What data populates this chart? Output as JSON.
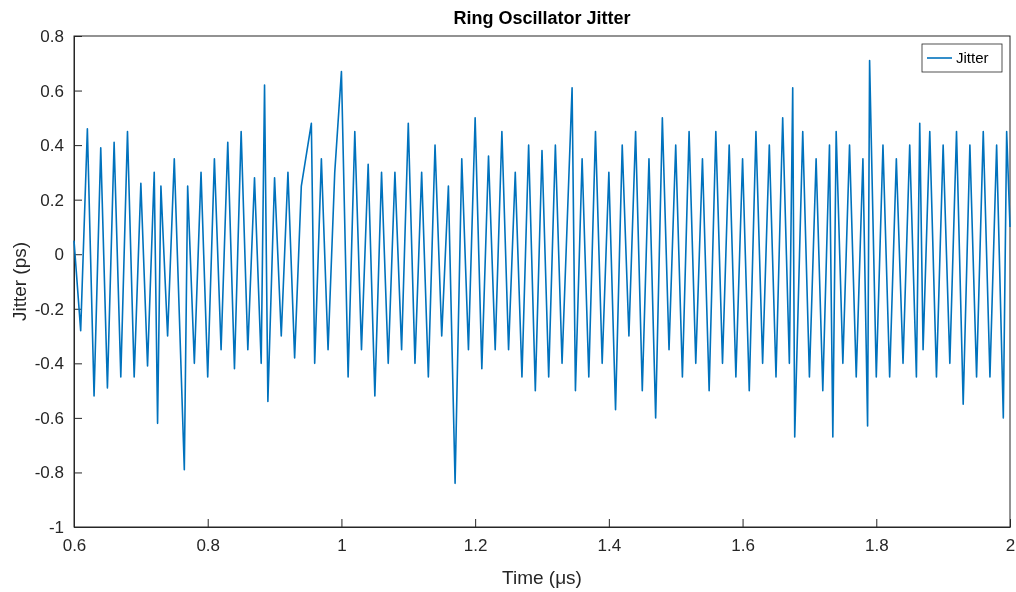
{
  "chart_data": {
    "type": "line",
    "title": "Ring Oscillator Jitter",
    "xlabel": "Time (μs)",
    "ylabel": "Jitter (ps)",
    "xlim": [
      0.6,
      2
    ],
    "ylim": [
      -1,
      0.8
    ],
    "xticks": [
      0.6,
      0.8,
      1,
      1.2,
      1.4,
      1.6,
      1.8,
      2
    ],
    "yticks": [
      -1,
      -0.8,
      -0.6,
      -0.4,
      -0.2,
      0,
      0.2,
      0.4,
      0.6,
      0.8
    ],
    "legend": "top right",
    "grid": false,
    "line_style": "solid",
    "marker": "none",
    "x": [
      0.6,
      0.61,
      0.62,
      0.63,
      0.64,
      0.65,
      0.66,
      0.67,
      0.68,
      0.69,
      0.7,
      0.71,
      0.72,
      0.725,
      0.73,
      0.74,
      0.75,
      0.765,
      0.77,
      0.78,
      0.79,
      0.8,
      0.81,
      0.82,
      0.83,
      0.84,
      0.85,
      0.86,
      0.87,
      0.88,
      0.885,
      0.89,
      0.9,
      0.91,
      0.92,
      0.93,
      0.94,
      0.955,
      0.96,
      0.97,
      0.98,
      0.99,
      1,
      1.01,
      1.02,
      1.03,
      1.04,
      1.05,
      1.06,
      1.07,
      1.08,
      1.09,
      1.1,
      1.11,
      1.12,
      1.13,
      1.14,
      1.15,
      1.16,
      1.17,
      1.18,
      1.19,
      1.2,
      1.21,
      1.22,
      1.23,
      1.24,
      1.25,
      1.26,
      1.27,
      1.28,
      1.29,
      1.3,
      1.31,
      1.32,
      1.33,
      1.345,
      1.35,
      1.36,
      1.37,
      1.38,
      1.39,
      1.4,
      1.41,
      1.42,
      1.43,
      1.44,
      1.45,
      1.46,
      1.47,
      1.48,
      1.49,
      1.5,
      1.51,
      1.52,
      1.53,
      1.54,
      1.55,
      1.56,
      1.57,
      1.58,
      1.59,
      1.6,
      1.61,
      1.62,
      1.63,
      1.64,
      1.65,
      1.66,
      1.67,
      1.675,
      1.678,
      1.69,
      1.7,
      1.71,
      1.72,
      1.73,
      1.735,
      1.74,
      1.75,
      1.76,
      1.77,
      1.78,
      1.787,
      1.79,
      1.8,
      1.81,
      1.82,
      1.83,
      1.84,
      1.85,
      1.86,
      1.865,
      1.87,
      1.88,
      1.89,
      1.9,
      1.91,
      1.92,
      1.93,
      1.94,
      1.95,
      1.96,
      1.97,
      1.98,
      1.99,
      1.995,
      2
    ],
    "series": [
      {
        "name": "Jitter",
        "color": "#0072bd",
        "values": [
          0.05,
          -0.28,
          0.46,
          -0.52,
          0.39,
          -0.49,
          0.41,
          -0.45,
          0.45,
          -0.45,
          0.26,
          -0.41,
          0.3,
          -0.62,
          0.25,
          -0.3,
          0.35,
          -0.79,
          0.25,
          -0.4,
          0.3,
          -0.45,
          0.35,
          -0.35,
          0.41,
          -0.42,
          0.45,
          -0.35,
          0.28,
          -0.4,
          0.62,
          -0.54,
          0.28,
          -0.3,
          0.3,
          -0.38,
          0.25,
          0.48,
          -0.4,
          0.35,
          -0.35,
          0.3,
          0.67,
          -0.45,
          0.45,
          -0.35,
          0.33,
          -0.52,
          0.3,
          -0.4,
          0.3,
          -0.35,
          0.48,
          -0.4,
          0.3,
          -0.45,
          0.4,
          -0.3,
          0.25,
          -0.84,
          0.35,
          -0.35,
          0.5,
          -0.42,
          0.36,
          -0.35,
          0.45,
          -0.35,
          0.3,
          -0.45,
          0.4,
          -0.5,
          0.38,
          -0.45,
          0.4,
          -0.4,
          0.61,
          -0.5,
          0.35,
          -0.45,
          0.45,
          -0.4,
          0.3,
          -0.57,
          0.4,
          -0.3,
          0.45,
          -0.5,
          0.35,
          -0.6,
          0.5,
          -0.35,
          0.4,
          -0.45,
          0.45,
          -0.4,
          0.35,
          -0.5,
          0.45,
          -0.4,
          0.4,
          -0.45,
          0.35,
          -0.5,
          0.45,
          -0.4,
          0.4,
          -0.45,
          0.5,
          -0.4,
          0.61,
          -0.67,
          0.45,
          -0.45,
          0.35,
          -0.5,
          0.4,
          -0.67,
          0.45,
          -0.4,
          0.4,
          -0.45,
          0.35,
          -0.63,
          0.71,
          -0.45,
          0.4,
          -0.45,
          0.35,
          -0.4,
          0.4,
          -0.45,
          0.48,
          -0.35,
          0.45,
          -0.45,
          0.4,
          -0.4,
          0.45,
          -0.55,
          0.4,
          -0.45,
          0.45,
          -0.45,
          0.4,
          -0.6,
          0.45,
          0.1
        ]
      }
    ]
  }
}
